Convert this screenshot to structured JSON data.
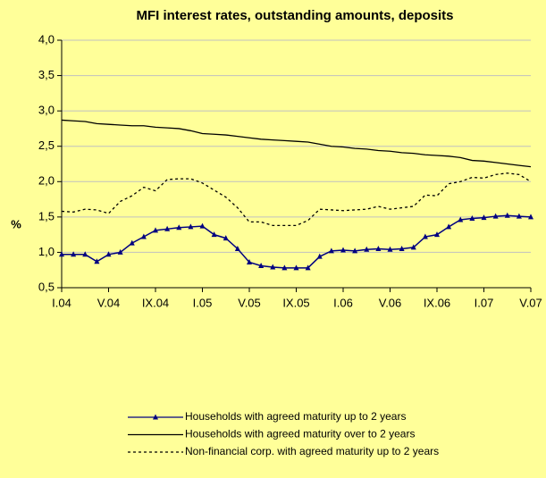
{
  "chart_data": {
    "type": "line",
    "title": "MFI interest rates, outstanding amounts, deposits",
    "y_label": "%",
    "categories": [
      "I.04",
      null,
      null,
      null,
      "V.04",
      null,
      null,
      null,
      "IX.04",
      null,
      null,
      null,
      "I.05",
      null,
      null,
      null,
      "V.05",
      null,
      null,
      null,
      "IX.05",
      null,
      null,
      null,
      "I.06",
      null,
      null,
      null,
      "V.06",
      null,
      null,
      null,
      "IX.06",
      null,
      null,
      null,
      "I.07",
      null,
      null,
      null,
      "V.07"
    ],
    "series": [
      {
        "name": "Households with agreed maturity up to 2 years",
        "color": "#000080",
        "marker": true,
        "dash": false,
        "values": [
          0.97,
          0.97,
          0.97,
          0.87,
          0.97,
          1.0,
          1.13,
          1.22,
          1.31,
          1.33,
          1.35,
          1.36,
          1.37,
          1.25,
          1.2,
          1.05,
          0.86,
          0.81,
          0.79,
          0.78,
          0.78,
          0.78,
          0.94,
          1.02,
          1.03,
          1.02,
          1.04,
          1.05,
          1.04,
          1.05,
          1.07,
          1.22,
          1.25,
          1.36,
          1.46,
          1.48,
          1.49,
          1.51,
          1.52,
          1.51,
          1.5
        ]
      },
      {
        "name": "Households with agreed maturity over to 2 years",
        "color": "#000000",
        "marker": false,
        "dash": false,
        "values": [
          2.87,
          2.86,
          2.85,
          2.82,
          2.81,
          2.8,
          2.79,
          2.79,
          2.77,
          2.76,
          2.75,
          2.72,
          2.68,
          2.67,
          2.66,
          2.64,
          2.62,
          2.6,
          2.59,
          2.58,
          2.57,
          2.56,
          2.53,
          2.5,
          2.49,
          2.47,
          2.46,
          2.44,
          2.43,
          2.41,
          2.4,
          2.38,
          2.37,
          2.36,
          2.34,
          2.3,
          2.29,
          2.27,
          2.25,
          2.23,
          2.21
        ]
      },
      {
        "name": "Non-financial corp. with agreed maturity up to 2 years",
        "color": "#000000",
        "marker": false,
        "dash": true,
        "values": [
          1.58,
          1.57,
          1.61,
          1.6,
          1.55,
          1.72,
          1.8,
          1.92,
          1.87,
          2.03,
          2.04,
          2.04,
          1.98,
          1.88,
          1.78,
          1.63,
          1.43,
          1.43,
          1.38,
          1.38,
          1.38,
          1.45,
          1.61,
          1.6,
          1.59,
          1.6,
          1.61,
          1.65,
          1.61,
          1.63,
          1.65,
          1.81,
          1.8,
          1.97,
          2.0,
          2.06,
          2.05,
          2.1,
          2.12,
          2.1,
          2.0
        ]
      }
    ],
    "ylim": [
      0.5,
      4
    ],
    "yticks": [
      {
        "value": 0.5,
        "label": "0,5"
      },
      {
        "value": 1,
        "label": "1,0"
      },
      {
        "value": 1.5,
        "label": "1,5"
      },
      {
        "value": 2,
        "label": "2,0"
      },
      {
        "value": 2.5,
        "label": "2,5"
      },
      {
        "value": 3,
        "label": "3,0"
      },
      {
        "value": 3.5,
        "label": "3,5"
      },
      {
        "value": 4,
        "label": "4,0"
      }
    ],
    "grid": true,
    "legend": "bottom"
  }
}
